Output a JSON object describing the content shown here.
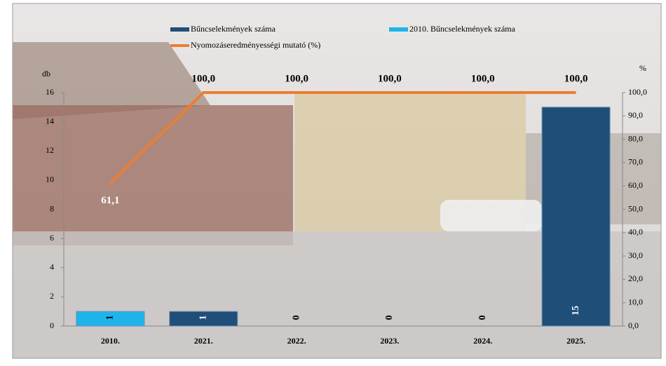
{
  "chart_data": {
    "type": "bar",
    "categories": [
      "2010.",
      "2021.",
      "2022.",
      "2023.",
      "2024.",
      "2025."
    ],
    "series": [
      {
        "name": "Bűncselekmények száma",
        "color": "#1f4e79",
        "values": [
          null,
          1,
          0,
          0,
          0,
          15
        ]
      },
      {
        "name": "2010. Bűncselekmények száma",
        "color": "#1eb4ea",
        "values": [
          1,
          null,
          null,
          null,
          null,
          null
        ]
      },
      {
        "name": "Nyomozáseredményességi mutató (%)",
        "color": "#ed7d31",
        "type": "line",
        "axis": "y2",
        "values": [
          61.1,
          100,
          100,
          100,
          100,
          100
        ],
        "value_labels": [
          "61,1",
          "100,0",
          "100,0",
          "100,0",
          "100,0",
          "100,0"
        ]
      }
    ],
    "ylabel": "db",
    "y2label": "%",
    "ylim": [
      0,
      16
    ],
    "yticks": [
      0,
      2,
      4,
      6,
      8,
      10,
      12,
      14,
      16
    ],
    "y2lim": [
      0,
      100
    ],
    "y2ticks": [
      {
        "value": 0,
        "label": "0,0"
      },
      {
        "value": 10,
        "label": "10,0"
      },
      {
        "value": 20,
        "label": "20,0"
      },
      {
        "value": 30,
        "label": "30,0"
      },
      {
        "value": 40,
        "label": "40,0"
      },
      {
        "value": 50,
        "label": "50,0"
      },
      {
        "value": 60,
        "label": "60,0"
      },
      {
        "value": 70,
        "label": "70,0"
      },
      {
        "value": 80,
        "label": "80,0"
      },
      {
        "value": 90,
        "label": "90,0"
      },
      {
        "value": 100,
        "label": "100,0"
      }
    ],
    "legend": "top"
  }
}
